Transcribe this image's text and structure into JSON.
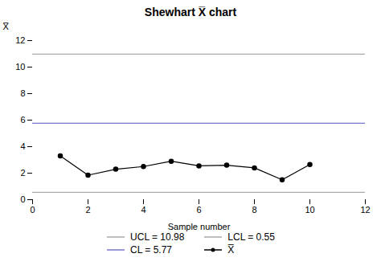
{
  "chart_data": {
    "type": "line",
    "title": "Shewhart X̅ chart",
    "xlabel": "Sample number",
    "ylabel": "X̅",
    "xlim": [
      0,
      12
    ],
    "ylim": [
      0,
      12
    ],
    "xticks": [
      0,
      2,
      4,
      6,
      8,
      10,
      12
    ],
    "yticks": [
      0,
      2,
      4,
      6,
      8,
      10,
      12
    ],
    "grid": false,
    "legend": "bottom",
    "series": [
      {
        "name": "UCL = 10.98",
        "color": "#aaaaaa",
        "line_style": "solid",
        "x": [
          0,
          12
        ],
        "values": [
          10.98,
          10.98
        ]
      },
      {
        "name": "LCL = 0.55",
        "color": "#aaaaaa",
        "line_style": "solid",
        "x": [
          0,
          12
        ],
        "values": [
          0.55,
          0.55
        ]
      },
      {
        "name": "CL = 5.77",
        "color": "#7777cc",
        "line_style": "solid",
        "x": [
          0,
          12
        ],
        "values": [
          5.77,
          5.77
        ]
      },
      {
        "name": "X̅",
        "color": "#000000",
        "line_style": "solid",
        "marker": "circle",
        "x": [
          1,
          2,
          3,
          4,
          5,
          6,
          7,
          8,
          9,
          10
        ],
        "values": [
          3.3,
          1.85,
          2.3,
          2.5,
          2.9,
          2.55,
          2.6,
          2.4,
          1.5,
          2.65
        ]
      }
    ]
  }
}
